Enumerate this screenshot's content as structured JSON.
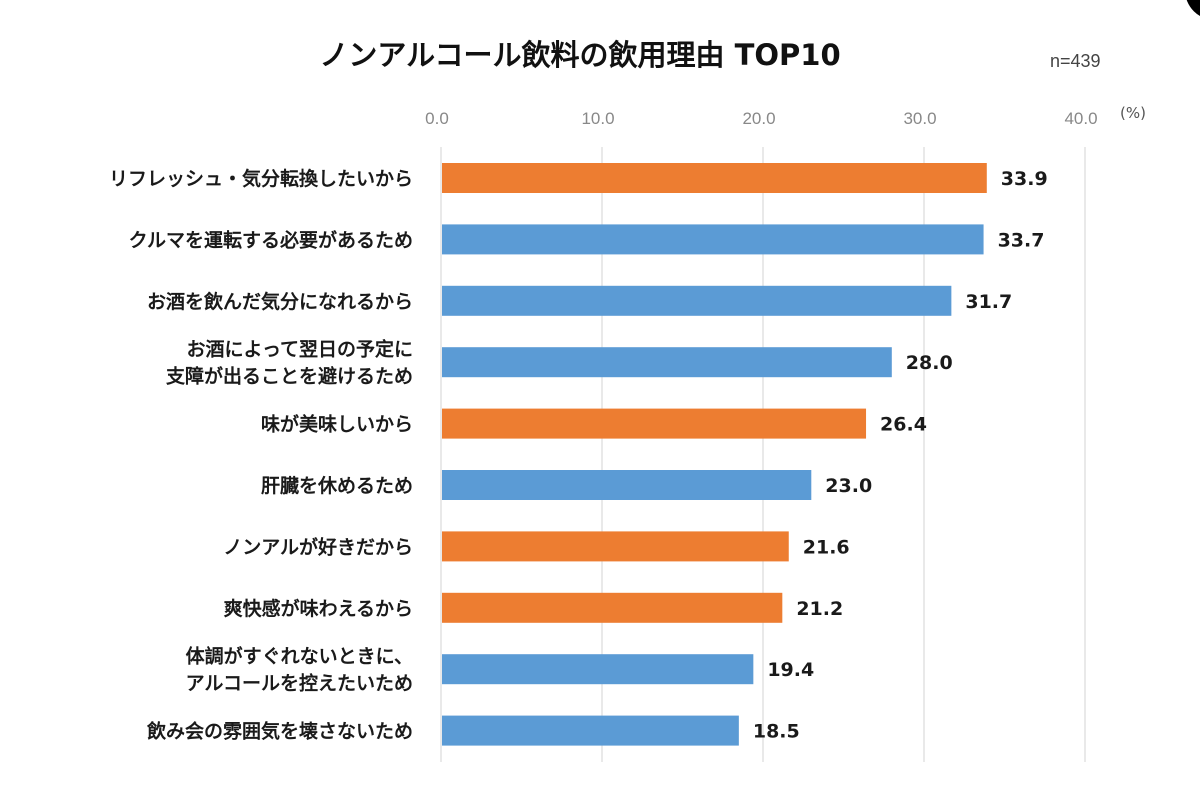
{
  "chart_data": {
    "type": "bar",
    "orientation": "horizontal",
    "title": "ノンアルコール飲料の飲用理由 TOP10",
    "sample_size_label": "n=439",
    "unit_label": "(%)",
    "xlabel": "",
    "ylabel": "",
    "xlim": [
      0,
      40
    ],
    "x_ticks": [
      "0.0",
      "10.0",
      "20.0",
      "30.0",
      "40.0"
    ],
    "x_tick_values": [
      0,
      10,
      20,
      30,
      40
    ],
    "grid": true,
    "legend": "none",
    "colors": {
      "highlight": "#ED7D31",
      "default": "#5B9BD5"
    },
    "categories": [
      [
        "リフレッシュ・気分転換したいから"
      ],
      [
        "クルマを運転する必要があるため"
      ],
      [
        "お酒を飲んだ気分になれるから"
      ],
      [
        "お酒によって翌日の予定に",
        "支障が出ることを避けるため"
      ],
      [
        "味が美味しいから"
      ],
      [
        "肝臓を休めるため"
      ],
      [
        "ノンアルが好きだから"
      ],
      [
        "爽快感が味わえるから"
      ],
      [
        "体調がすぐれないときに、",
        "アルコールを控えたいため"
      ],
      [
        "飲み会の雰囲気を壊さないため"
      ]
    ],
    "values": [
      33.9,
      33.7,
      31.7,
      28.0,
      26.4,
      23.0,
      21.6,
      21.2,
      19.4,
      18.5
    ],
    "value_labels": [
      "33.9",
      "33.7",
      "31.7",
      "28.0",
      "26.4",
      "23.0",
      "21.6",
      "21.2",
      "19.4",
      "18.5"
    ],
    "highlighted": [
      true,
      false,
      false,
      false,
      true,
      false,
      true,
      true,
      false,
      false
    ]
  }
}
